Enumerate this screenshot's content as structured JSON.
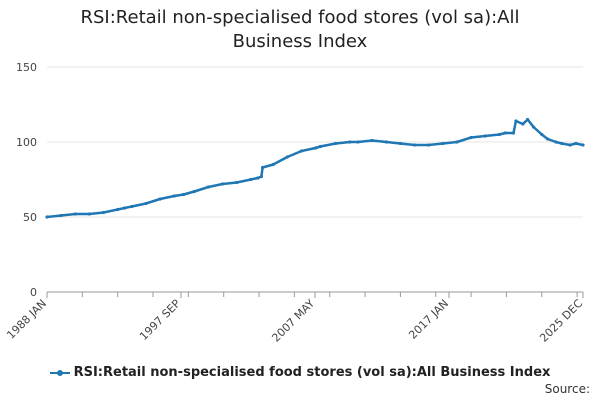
{
  "chart_data": {
    "type": "line",
    "title": "RSI:Retail non-specialised food stores (vol sa):All Business Index",
    "xlabel": "",
    "ylabel": "",
    "ylim": [
      0,
      150
    ],
    "yticks": [
      0,
      50,
      100,
      150
    ],
    "x_tick_labels": [
      "1988 JAN",
      "1997 SEP",
      "2007 MAY",
      "2017 JAN",
      "2025 DEC"
    ],
    "grid": true,
    "legend_position": "bottom",
    "series": [
      {
        "name": "RSI:Retail non-specialised food stores (vol sa):All Business Index",
        "color": "#1f77b4",
        "points": [
          [
            "1988-01",
            50
          ],
          [
            "1989-01",
            51
          ],
          [
            "1990-01",
            52
          ],
          [
            "1991-01",
            52
          ],
          [
            "1992-01",
            53
          ],
          [
            "1993-01",
            55
          ],
          [
            "1993-07",
            56
          ],
          [
            "1994-01",
            57
          ],
          [
            "1995-01",
            59
          ],
          [
            "1996-01",
            62
          ],
          [
            "1997-01",
            64
          ],
          [
            "1997-09",
            65
          ],
          [
            "1998-06",
            67
          ],
          [
            "1999-06",
            70
          ],
          [
            "2000-06",
            72
          ],
          [
            "2001-06",
            73
          ],
          [
            "2002-06",
            75
          ],
          [
            "2002-12",
            76
          ],
          [
            "2003-03",
            77
          ],
          [
            "2003-04",
            83
          ],
          [
            "2004-01",
            85
          ],
          [
            "2005-01",
            90
          ],
          [
            "2006-01",
            94
          ],
          [
            "2007-01",
            96
          ],
          [
            "2007-05",
            97
          ],
          [
            "2008-06",
            99
          ],
          [
            "2009-06",
            100
          ],
          [
            "2010-01",
            100
          ],
          [
            "2011-01",
            101
          ],
          [
            "2012-01",
            100
          ],
          [
            "2013-01",
            99
          ],
          [
            "2014-01",
            98
          ],
          [
            "2015-01",
            98
          ],
          [
            "2016-01",
            99
          ],
          [
            "2017-01",
            100
          ],
          [
            "2018-01",
            103
          ],
          [
            "2019-01",
            104
          ],
          [
            "2020-01",
            105
          ],
          [
            "2020-06",
            106
          ],
          [
            "2021-01",
            106
          ],
          [
            "2021-03",
            114
          ],
          [
            "2021-09",
            112
          ],
          [
            "2022-01",
            115
          ],
          [
            "2022-06",
            110
          ],
          [
            "2023-01",
            105
          ],
          [
            "2023-06",
            102
          ],
          [
            "2024-01",
            100
          ],
          [
            "2024-06",
            99
          ],
          [
            "2025-01",
            98
          ],
          [
            "2025-06",
            99
          ],
          [
            "2025-12",
            98
          ]
        ]
      }
    ]
  },
  "source": {
    "text": "Source:"
  }
}
